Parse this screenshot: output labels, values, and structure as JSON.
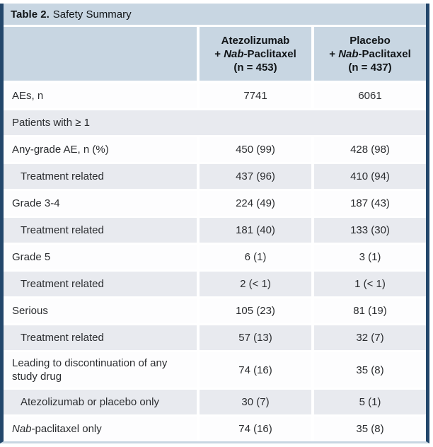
{
  "table": {
    "title": {
      "label_bold": "Table 2.",
      "label_rest": "Safety Summary"
    },
    "header": {
      "atezolizumab_col": {
        "line1": "Atezolizumab",
        "line2_pre": "+ ",
        "line2_italic": "Nab",
        "line2_post": "-Paclitaxel",
        "line3": "(n = 453)"
      },
      "placebo_col": {
        "line1": "Placebo",
        "line2_pre": "+ ",
        "line2_italic": "Nab",
        "line2_post": "-Paclitaxel",
        "line3": "(n = 437)"
      }
    },
    "rows": [
      {
        "label": "AEs, n",
        "atezolizumab": "7741",
        "placebo": "6061"
      },
      {
        "label": "Patients with ≥ 1",
        "atezolizumab": "",
        "placebo": ""
      },
      {
        "label": "Any-grade AE, n (%)",
        "atezolizumab": "450 (99)",
        "placebo": "428 (98)"
      },
      {
        "label": "Treatment related",
        "atezolizumab": "437 (96)",
        "placebo": "410 (94)"
      },
      {
        "label": "Grade 3-4",
        "atezolizumab": "224 (49)",
        "placebo": "187 (43)"
      },
      {
        "label": "Treatment related",
        "atezolizumab": "181 (40)",
        "placebo": "133 (30)"
      },
      {
        "label": "Grade 5",
        "atezolizumab": "6 (1)",
        "placebo": "3 (1)"
      },
      {
        "label": "Treatment related",
        "atezolizumab": "2 (< 1)",
        "placebo": "1 (< 1)"
      },
      {
        "label": "Serious",
        "atezolizumab": "105 (23)",
        "placebo": "81 (19)"
      },
      {
        "label": "Treatment related",
        "atezolizumab": "57 (13)",
        "placebo": "32 (7)"
      },
      {
        "label": "Leading to discontinuation of any study drug",
        "atezolizumab": "74 (16)",
        "placebo": "35 (8)"
      },
      {
        "label": "Atezolizumab or placebo only",
        "atezolizumab": "30 (7)",
        "placebo": "5 (1)"
      },
      {
        "label_italic": "Nab",
        "label": "-paclitaxel only",
        "atezolizumab": "74 (16)",
        "placebo": "35 (8)"
      }
    ]
  },
  "colors": {
    "header_blue": "#c8d6e2",
    "alt_row_gray": "#e8eaef",
    "frame_navy": "#23476b",
    "text": "#2b2d30"
  }
}
